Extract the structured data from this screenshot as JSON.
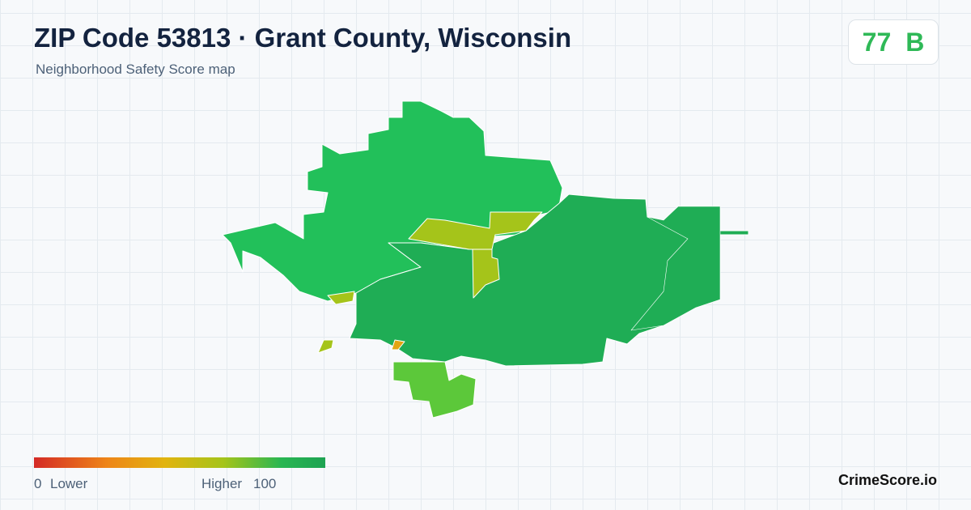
{
  "header": {
    "title": "ZIP Code 53813 · Grant County, Wisconsin",
    "subtitle": "Neighborhood Safety Score map"
  },
  "score": {
    "value": "77",
    "grade": "B"
  },
  "legend": {
    "min": "0",
    "min_label": "Lower",
    "max_label": "Higher",
    "max": "100"
  },
  "brand": "CrimeScore.io"
}
